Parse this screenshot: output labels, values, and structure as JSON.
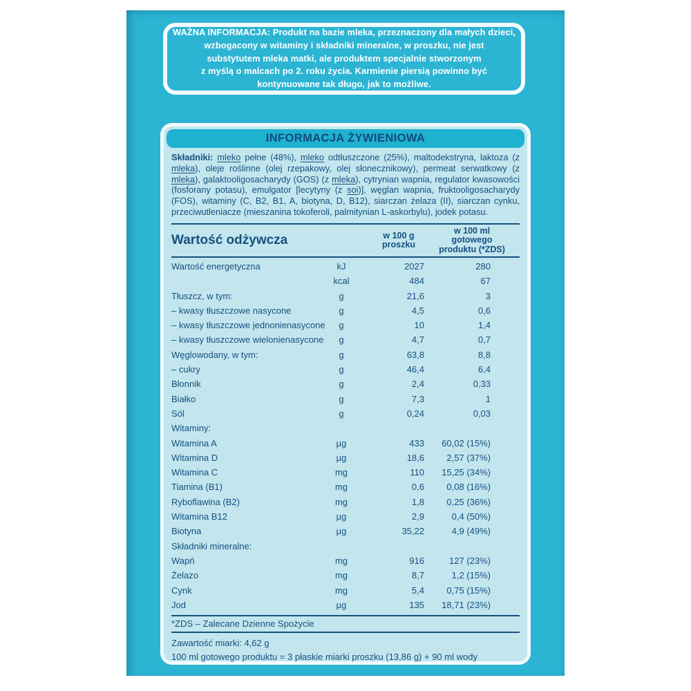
{
  "colors": {
    "package_teal": "#2cb4d3",
    "header_bar_teal": "#1fb1d0",
    "panel_light_blue": "#c3e5ee",
    "navy_text": "#14517f",
    "white_border": "#f4fbfd"
  },
  "warning": {
    "text": "WAŻNA INFORMACJA: Produkt na bazie mleka, przeznaczony dla małych dzieci,\nwzbogacony w witaminy i składniki mineralne, w proszku, nie jest\nsubstytutem mleka matki, ale produktem specjalnie stworzonym\nz myślą o malcach po 2. roku życia. Karmienie piersią powinno być\nkontynuowane tak długo, jak to możliwe."
  },
  "panel": {
    "title": "INFORMACJA ŻYWIENIOWA",
    "ingredients": {
      "segments": [
        {
          "t": "Składniki: ",
          "b": true
        },
        {
          "t": "mleko",
          "u": true
        },
        {
          "t": " pełne (48%), "
        },
        {
          "t": "mleko",
          "u": true
        },
        {
          "t": " odtłuszczone (25%), maltodekstryna, laktoza (z "
        },
        {
          "t": "mleka",
          "u": true
        },
        {
          "t": "), oleje roślinne (olej rzepakowy, olej słonecznikowy), permeat serwatkowy (z "
        },
        {
          "t": "mleka",
          "u": true
        },
        {
          "t": "), galaktooligosacharydy (GOS) (z "
        },
        {
          "t": "mleka",
          "u": true
        },
        {
          "t": "), cytrynian wapnia, regulator kwasowości (fosforany potasu), emulgator [lecytyny (z "
        },
        {
          "t": "soi",
          "u": true
        },
        {
          "t": ")], węglan wapnia, fruktooligosacharydy (FOS), witaminy (C, B2, B1, A, biotyna, D, B12), siarczan żelaza (II), siarczan cynku, przeciwutleniacze (mieszanina tokoferoli, palmitynian L-askorbylu), jodek potasu."
        }
      ]
    },
    "table": {
      "title": "Wartość odżywcza",
      "col_100g": "w 100 g\nproszku",
      "col_100ml": "w 100 ml\ngotowego\nproduktu (*ZDS)",
      "rows": [
        {
          "label": "Wartość energetyczna",
          "unit": "kJ",
          "g": "2027",
          "ml": "280"
        },
        {
          "label": "",
          "unit": "kcal",
          "g": "484",
          "ml": "67"
        },
        {
          "label": "Tłuszcz, w tym:",
          "unit": "g",
          "g": "21,6",
          "ml": "3"
        },
        {
          "label": "– kwasy tłuszczowe nasycone",
          "unit": "g",
          "g": "4,5",
          "ml": "0,6"
        },
        {
          "label": "– kwasy tłuszczowe jednonienasycone",
          "unit": "g",
          "g": "10",
          "ml": "1,4"
        },
        {
          "label": "– kwasy tłuszczowe wielonienasycone",
          "unit": "g",
          "g": "4,7",
          "ml": "0,7"
        },
        {
          "label": "Węglowodany, w tym:",
          "unit": "g",
          "g": "63,8",
          "ml": "8,8"
        },
        {
          "label": "– cukry",
          "unit": "g",
          "g": "46,4",
          "ml": "6,4"
        },
        {
          "label": "Błonnik",
          "unit": "g",
          "g": "2,4",
          "ml": "0,33"
        },
        {
          "label": "Białko",
          "unit": "g",
          "g": "7,3",
          "ml": "1"
        },
        {
          "label": "Sól",
          "unit": "g",
          "g": "0,24",
          "ml": "0,03"
        },
        {
          "label": "Witaminy:",
          "section": true
        },
        {
          "label": "Witamina A",
          "unit": "µg",
          "g": "433",
          "ml": "60,02 (15%)"
        },
        {
          "label": "Witamina D",
          "unit": "µg",
          "g": "18,6",
          "ml": "2,57 (37%)"
        },
        {
          "label": "Witamina C",
          "unit": "mg",
          "g": "110",
          "ml": "15,25 (34%)"
        },
        {
          "label": "Tiamina (B1)",
          "unit": "mg",
          "g": "0,6",
          "ml": "0,08 (16%)"
        },
        {
          "label": "Ryboflawina (B2)",
          "unit": "mg",
          "g": "1,8",
          "ml": "0,25 (36%)"
        },
        {
          "label": "Witamina B12",
          "unit": "µg",
          "g": "2,9",
          "ml": "0,4 (50%)"
        },
        {
          "label": "Biotyna",
          "unit": "µg",
          "g": "35,22",
          "ml": "4,9 (49%)"
        },
        {
          "label": "Składniki mineralne:",
          "section": true
        },
        {
          "label": "Wapń",
          "unit": "mg",
          "g": "916",
          "ml": "127 (23%)"
        },
        {
          "label": "Żelazo",
          "unit": "mg",
          "g": "8,7",
          "ml": "1,2 (15%)"
        },
        {
          "label": "Cynk",
          "unit": "mg",
          "g": "5,4",
          "ml": "0,75 (15%)"
        },
        {
          "label": "Jod",
          "unit": "µg",
          "g": "135",
          "ml": "18,71 (23%)"
        }
      ]
    },
    "zds_note": "*ZDS – Zalecane Dzienne Spożycie",
    "footer": {
      "line1": "Zawartość miarki: 4,62 g",
      "line2": "100 ml gotowego produktu = 3 płaskie miarki proszku (13,86 g) + 90 ml wody"
    }
  }
}
